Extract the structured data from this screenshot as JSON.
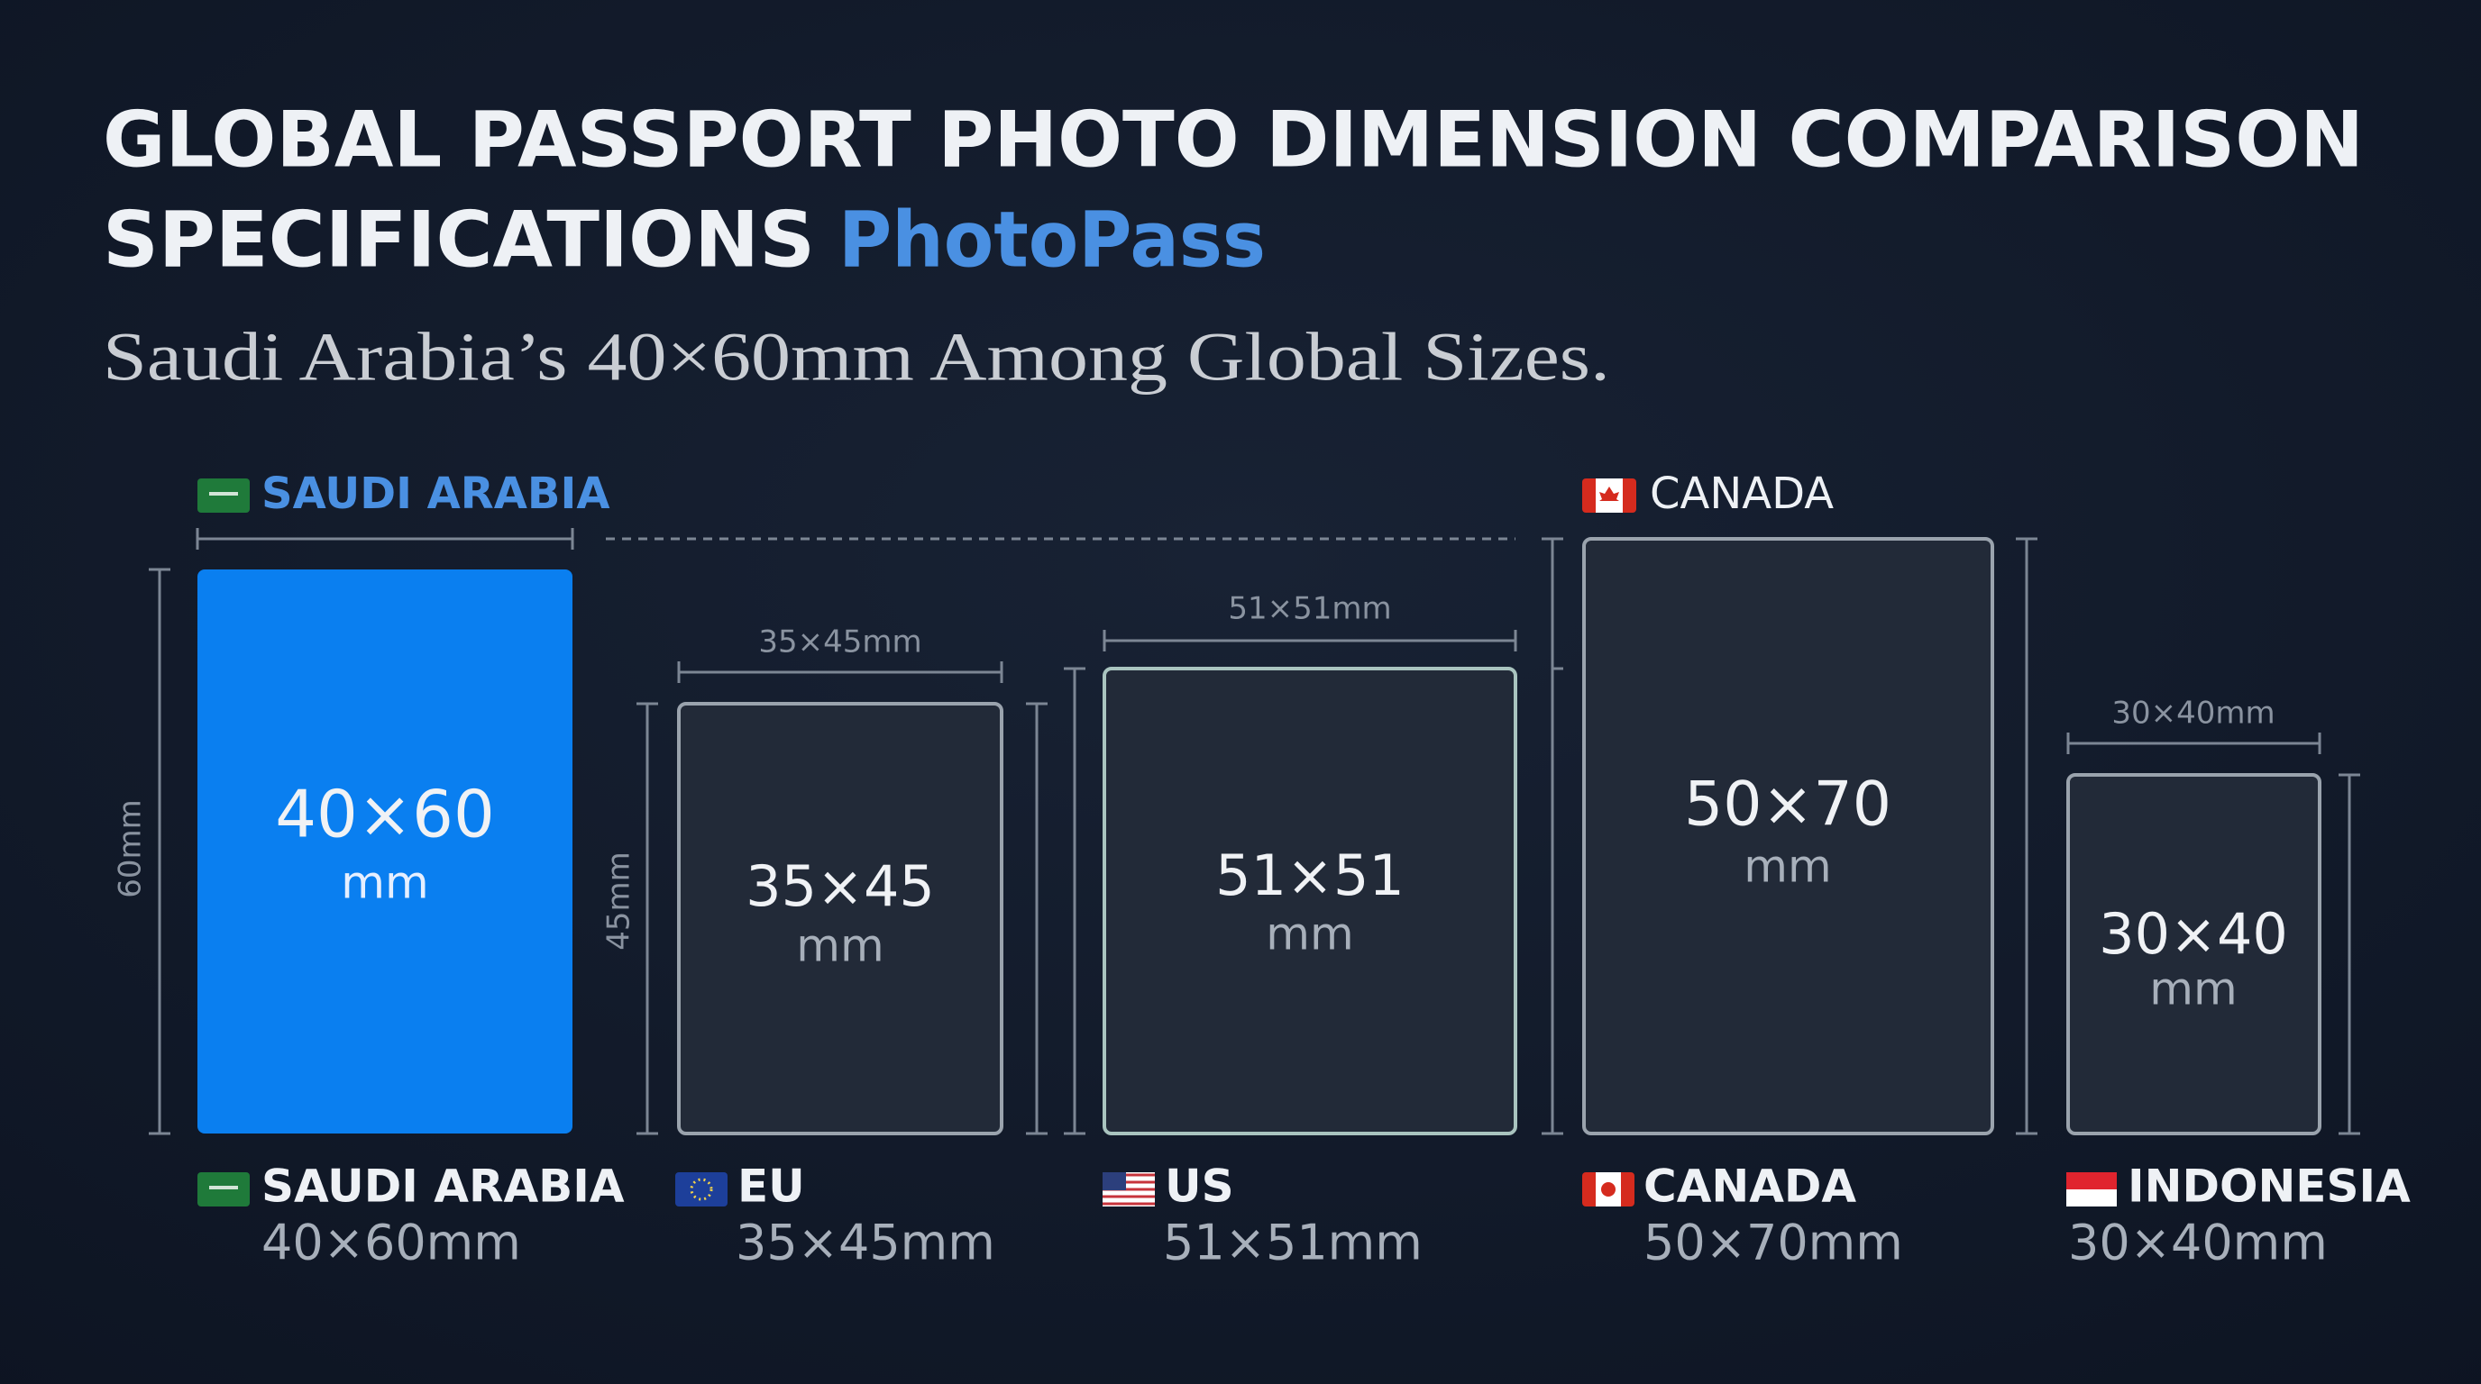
{
  "header": {
    "title_line1": "GLOBAL PASSPORT PHOTO DIMENSION COMPARISON",
    "title_line2": "SPECIFICATIONS",
    "brand": "PhotoPass",
    "subtitle": "Saudi Arabia’s 40×60mm Among Global Sizes."
  },
  "top_labels": {
    "saudi": "SAUDI ARABIA",
    "canada": "CANADA"
  },
  "photos": [
    {
      "box_size": "40×60",
      "box_unit": "mm",
      "side_label": "60mm",
      "name": "SAUDI ARABIA",
      "size": "40×60mm"
    },
    {
      "box_size": "35×45",
      "box_unit": "mm",
      "top_label": "35×45mm",
      "side_label": "45mm",
      "name": "EU",
      "size": "35×45mm"
    },
    {
      "box_size": "51×51",
      "box_unit": "mm",
      "top_label": "51×51mm",
      "name": "US",
      "size": "51×51mm"
    },
    {
      "box_size": "50×70",
      "box_unit": "mm",
      "name": "CANADA",
      "size": "50×70mm"
    },
    {
      "box_size": "30×40",
      "box_unit": "mm",
      "top_label": "30×40mm",
      "name": "INDONESIA",
      "size": "30×40mm"
    }
  ]
}
